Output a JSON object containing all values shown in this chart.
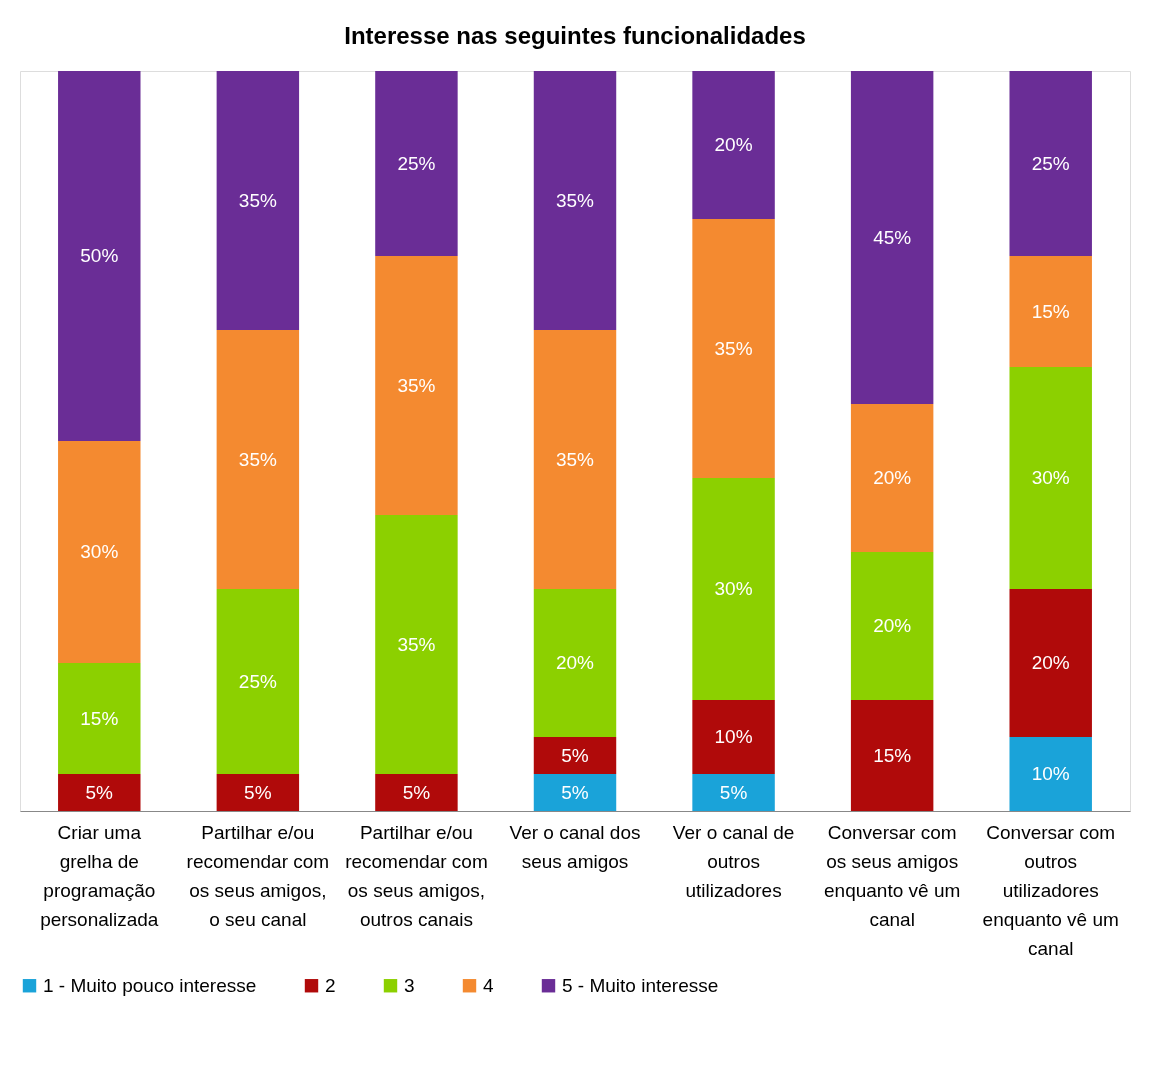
{
  "chart_data": {
    "type": "bar",
    "title": "Interesse nas seguintes funcionalidades",
    "categories": [
      "Criar uma grelha de programação personalizada",
      "Partilhar e/ou recomendar com os seus amigos, o seu canal",
      "Partilhar e/ou recomendar com os seus amigos, outros canais",
      "Ver o canal dos seus amigos",
      "Ver o canal de outros utilizadores",
      "Conversar com os seus amigos enquanto vê um canal",
      "Conversar com outros utilizadores enquanto vê um canal"
    ],
    "stacked": true,
    "legend": "bottom",
    "series": [
      {
        "name": "1 - Muito pouco interesse",
        "color": "#1aa3d9",
        "values": [
          null,
          null,
          null,
          5,
          5,
          null,
          10
        ],
        "value_labels": [
          null,
          null,
          null,
          "5%",
          "5%",
          null,
          "10%"
        ]
      },
      {
        "name": "2",
        "color": "#b00a0a",
        "values": [
          5,
          5,
          5,
          5,
          10,
          15,
          20
        ],
        "value_labels": [
          "5%",
          "5%",
          "5%",
          "5%",
          "10%",
          "15%",
          "20%"
        ]
      },
      {
        "name": "3",
        "color": "#8cd000",
        "values": [
          15,
          25,
          35,
          20,
          30,
          20,
          30
        ],
        "value_labels": [
          "15%",
          "25%",
          "35%",
          "20%",
          "30%",
          "20%",
          "30%"
        ]
      },
      {
        "name": "4",
        "color": "#f48a30",
        "values": [
          30,
          35,
          35,
          35,
          35,
          20,
          15
        ],
        "value_labels": [
          "30%",
          "35%",
          "35%",
          "35%",
          "35%",
          "20%",
          "15%"
        ]
      },
      {
        "name": "5 - Muito interesse",
        "color": "#6a2d96",
        "values": [
          50,
          35,
          25,
          35,
          20,
          45,
          25
        ],
        "value_labels": [
          "50%",
          "35%",
          "25%",
          "35%",
          "20%",
          "45%",
          "25%"
        ]
      }
    ]
  }
}
